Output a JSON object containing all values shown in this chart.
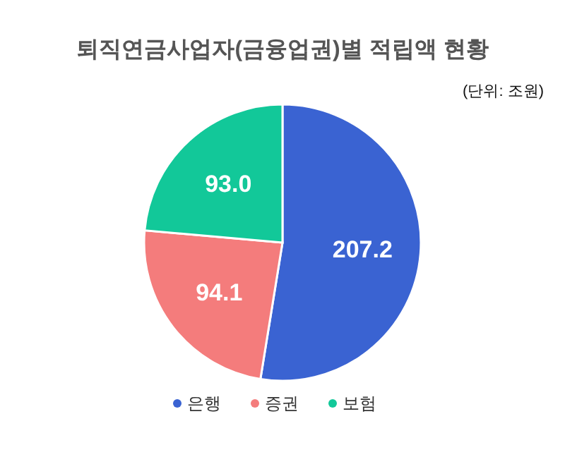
{
  "chart_data": {
    "type": "pie",
    "title": "퇴직연금사업자(금융업권)별 적립액 현황",
    "subtitle": "(단위: 조원)",
    "categories": [
      "은행",
      "증권",
      "보험"
    ],
    "values": [
      207.2,
      94.1,
      93.0
    ],
    "colors": [
      "#3a63d2",
      "#f47c7c",
      "#12c899"
    ],
    "value_labels": [
      "207.2",
      "94.1",
      "93.0"
    ],
    "legend": "bottom"
  }
}
